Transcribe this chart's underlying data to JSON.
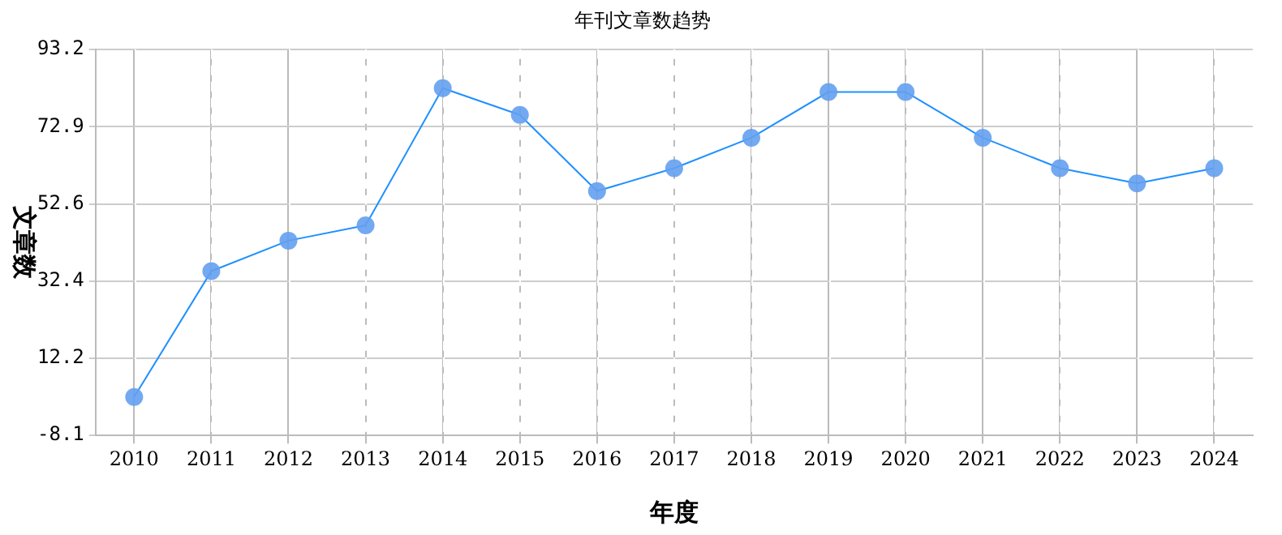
{
  "chart_data": {
    "type": "line",
    "title": "年刊文章数趋势",
    "xlabel": "年度",
    "ylabel": "文章数",
    "categories": [
      "2010",
      "2011",
      "2012",
      "2013",
      "2014",
      "2015",
      "2016",
      "2017",
      "2018",
      "2019",
      "2020",
      "2021",
      "2022",
      "2023",
      "2024"
    ],
    "series": [
      {
        "color": "#1e90ff",
        "values": [
          2,
          35,
          43,
          47,
          83,
          76,
          56,
          62,
          70,
          82,
          82,
          70,
          62,
          58,
          62
        ]
      }
    ],
    "ylim": [
      -8.1,
      93.2
    ],
    "yticks": [
      -8.1,
      12.2,
      32.4,
      52.6,
      72.9,
      93.2
    ],
    "grid": true,
    "legend": false,
    "marker": "circle",
    "line_style": "solid"
  }
}
